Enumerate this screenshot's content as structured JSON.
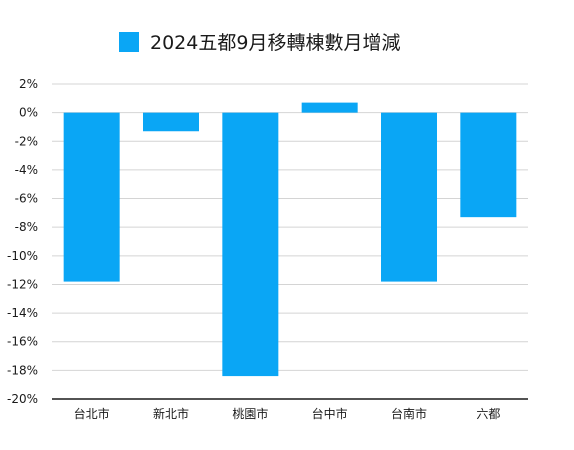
{
  "chart_data": {
    "type": "bar",
    "title": "",
    "xlabel": "",
    "ylabel": "",
    "legend": {
      "position": "top",
      "entries": [
        "2024五都9月移轉棟數月增減"
      ]
    },
    "categories": [
      "台北市",
      "新北市",
      "桃園市",
      "台中市",
      "台南市",
      "六都"
    ],
    "series": [
      {
        "name": "2024五都9月移轉棟數月增減",
        "color": "#0aa6f5",
        "values": [
          -11.8,
          -1.3,
          -18.4,
          0.7,
          -11.8,
          -7.3
        ]
      }
    ],
    "ylim": [
      -20,
      2
    ],
    "yticks": [
      2,
      0,
      -2,
      -4,
      -6,
      -8,
      -10,
      -12,
      -14,
      -16,
      -18,
      -20
    ],
    "ytick_labels": [
      "2%",
      "0%",
      "-2%",
      "-4%",
      "-6%",
      "-8%",
      "-10%",
      "-12%",
      "-14%",
      "-16%",
      "-18%",
      "-20%"
    ],
    "grid": true
  }
}
